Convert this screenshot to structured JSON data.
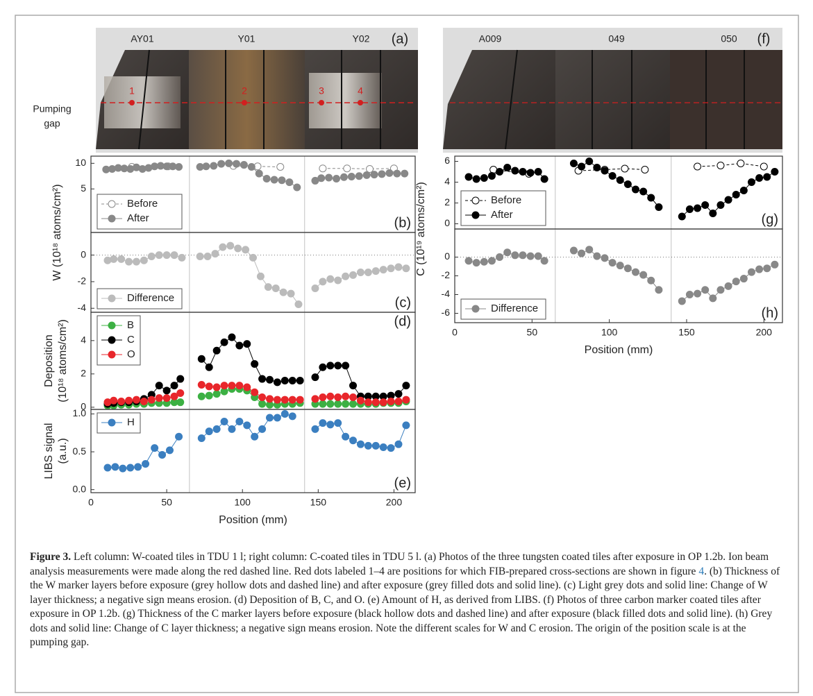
{
  "photos": {
    "left": {
      "tiles": [
        "AY01",
        "Y01",
        "Y02"
      ],
      "panel_label": "(a)",
      "side_label": [
        "Pumping",
        "gap"
      ],
      "points": [
        "1",
        "2",
        "3",
        "4"
      ]
    },
    "right": {
      "tiles": [
        "A009",
        "049",
        "050"
      ],
      "panel_label": "(f)"
    }
  },
  "chart_data": [
    {
      "type": "line",
      "xlim": [
        0,
        214
      ],
      "ylim": [
        -3.5,
        11.4
      ],
      "yticks": [
        5,
        10
      ],
      "ylabel": "W (10¹⁸ atoms/cm²)",
      "ylabel_anchor": "bottom",
      "vlines": [
        65,
        141
      ],
      "panel_label": "(b)",
      "panel_label_position": "lower right",
      "legend": "lower left",
      "series": [
        {
          "name": "Before",
          "color": "#888888",
          "marker": "hollow",
          "line": "dashed",
          "x": [
            27,
            51,
            null,
            94,
            110,
            125,
            null,
            153,
            169,
            184,
            200
          ],
          "values": [
            9.3,
            9.4,
            null,
            9.5,
            9.4,
            9.3,
            null,
            9.0,
            9.0,
            8.9,
            9.0
          ]
        },
        {
          "name": "After",
          "color": "#888888",
          "marker": "filled",
          "line": "solid",
          "x": [
            10,
            14,
            18,
            22,
            26,
            30,
            34,
            38,
            42,
            46,
            50,
            54,
            58,
            null,
            72,
            76,
            81,
            86,
            91,
            96,
            101,
            106,
            111,
            116,
            121,
            126,
            131,
            136,
            null,
            148,
            152,
            157,
            162,
            167,
            172,
            177,
            182,
            187,
            192,
            197,
            202,
            207
          ],
          "values": [
            8.8,
            8.9,
            9.1,
            9.0,
            8.9,
            9.2,
            8.9,
            9.1,
            9.4,
            9.5,
            9.4,
            9.4,
            9.3,
            null,
            9.3,
            9.4,
            9.5,
            9.9,
            10.0,
            9.9,
            9.7,
            9.3,
            8.0,
            7.0,
            6.8,
            6.7,
            6.3,
            5.3,
            null,
            6.6,
            7.1,
            7.2,
            7.0,
            7.3,
            7.4,
            7.5,
            7.7,
            7.8,
            7.9,
            8.1,
            8.0,
            8.0
          ]
        }
      ]
    },
    {
      "type": "line",
      "xlim": [
        0,
        214
      ],
      "ylim": [
        -4.3,
        1.7
      ],
      "yticks": [
        0,
        -2,
        -4
      ],
      "hline": 0,
      "vlines": [
        65,
        141
      ],
      "panel_label": "(c)",
      "panel_label_position": "lower right",
      "legend": "lower left",
      "x": [
        11,
        15,
        20,
        25,
        30,
        35,
        40,
        45,
        50,
        55,
        60,
        null,
        72,
        77,
        82,
        87,
        92,
        97,
        102,
        107,
        112,
        117,
        122,
        127,
        132,
        137,
        null,
        148,
        153,
        158,
        163,
        168,
        173,
        178,
        183,
        188,
        193,
        198,
        203,
        208
      ],
      "series": [
        {
          "name": "Difference",
          "color": "#bbbbbb",
          "marker": "filled",
          "line": "solid",
          "values": [
            -0.4,
            -0.3,
            -0.3,
            -0.5,
            -0.5,
            -0.4,
            -0.1,
            0,
            0,
            0,
            -0.2,
            null,
            -0.1,
            -0.1,
            0.1,
            0.6,
            0.7,
            0.5,
            0.4,
            -0.2,
            -1.6,
            -2.4,
            -2.5,
            -2.8,
            -2.9,
            -3.7,
            null,
            -2.5,
            -2.0,
            -1.8,
            -1.9,
            -1.6,
            -1.5,
            -1.3,
            -1.3,
            -1.2,
            -1.1,
            -1.0,
            -0.9,
            -1.0
          ]
        }
      ]
    },
    {
      "type": "line",
      "xlim": [
        0,
        214
      ],
      "ylim": [
        -0.13,
        5.7
      ],
      "yticks": [
        0,
        2,
        4
      ],
      "ylabel": [
        "Deposition",
        "(10¹⁸ atoms/cm²)"
      ],
      "vlines": [
        65,
        141
      ],
      "panel_label": "(d)",
      "panel_label_position": "upper right",
      "legend": "upper left",
      "x": [
        11,
        15,
        20,
        25,
        30,
        35,
        40,
        45,
        50,
        55,
        59,
        null,
        73,
        78,
        83,
        88,
        93,
        98,
        103,
        108,
        113,
        118,
        123,
        128,
        133,
        138,
        null,
        148,
        153,
        158,
        163,
        168,
        173,
        178,
        183,
        188,
        193,
        198,
        203,
        208
      ],
      "series": [
        {
          "name": "B",
          "color": "#3cb043",
          "marker": "filled",
          "line": "solid",
          "values": [
            0.1,
            0.1,
            0.15,
            0.15,
            0.2,
            0.2,
            0.25,
            0.25,
            0.25,
            0.3,
            0.3,
            null,
            0.65,
            0.7,
            0.8,
            0.95,
            1.1,
            1.1,
            1.0,
            0.6,
            0.2,
            0.15,
            0.15,
            0.2,
            0.2,
            0.25,
            null,
            0.2,
            0.2,
            0.2,
            0.2,
            0.2,
            0.2,
            0.2,
            0.2,
            0.2,
            0.25,
            0.25,
            0.25,
            0.35
          ]
        },
        {
          "name": "C",
          "color": "#000000",
          "marker": "filled",
          "line": "solid",
          "values": [
            0.2,
            0.25,
            0.3,
            0.3,
            0.35,
            0.5,
            0.75,
            1.3,
            1.0,
            1.3,
            1.7,
            null,
            2.9,
            2.4,
            3.4,
            3.9,
            4.2,
            3.7,
            3.8,
            2.6,
            1.7,
            1.65,
            1.5,
            1.6,
            1.6,
            1.6,
            null,
            1.8,
            2.4,
            2.5,
            2.5,
            2.5,
            1.3,
            0.65,
            0.65,
            0.65,
            0.65,
            0.7,
            0.8,
            1.3
          ]
        },
        {
          "name": "O",
          "color": "#e8262b",
          "marker": "filled",
          "line": "solid",
          "values": [
            0.3,
            0.4,
            0.35,
            0.4,
            0.45,
            0.35,
            0.45,
            0.55,
            0.55,
            0.65,
            0.85,
            null,
            1.35,
            1.25,
            1.2,
            1.3,
            1.3,
            1.3,
            1.2,
            0.9,
            0.6,
            0.5,
            0.45,
            0.45,
            0.45,
            0.45,
            null,
            0.5,
            0.6,
            0.65,
            0.6,
            0.65,
            0.6,
            0.4,
            0.3,
            0.3,
            0.3,
            0.35,
            0.35,
            0.45
          ]
        }
      ]
    },
    {
      "type": "line",
      "xlim": [
        0,
        214
      ],
      "ylim": [
        -0.04,
        1.06
      ],
      "yticks": [
        {
          "value": 0,
          "label": "0.0"
        },
        0.5,
        {
          "value": 1,
          "label": "1.0"
        }
      ],
      "xticks": [
        0,
        50,
        100,
        150,
        200
      ],
      "xlabel": "Position (mm)",
      "ylabel": [
        "LIBS signal",
        "(a.u.)"
      ],
      "vlines": [
        65,
        141
      ],
      "panel_label": "(e)",
      "panel_label_position": "lower right",
      "legend": "upper left",
      "x": [
        11,
        16,
        21,
        26,
        31,
        36,
        42,
        47,
        52,
        58,
        null,
        73,
        78,
        83,
        88,
        93,
        98,
        103,
        108,
        113,
        118,
        123,
        128,
        133,
        null,
        148,
        153,
        158,
        163,
        168,
        173,
        178,
        183,
        188,
        193,
        198,
        203,
        208
      ],
      "series": [
        {
          "name": "H",
          "color": "#3b7fc0",
          "marker": "filled",
          "line": "solid",
          "values": [
            0.29,
            0.3,
            0.28,
            0.29,
            0.3,
            0.34,
            0.55,
            0.46,
            0.52,
            0.7,
            null,
            0.68,
            0.77,
            0.8,
            0.9,
            0.8,
            0.9,
            0.85,
            0.7,
            0.8,
            0.95,
            0.95,
            1.0,
            0.97,
            null,
            0.8,
            0.88,
            0.86,
            0.88,
            0.7,
            0.65,
            0.6,
            0.58,
            0.58,
            0.56,
            0.55,
            0.6,
            0.85
          ]
        }
      ]
    },
    {
      "type": "line",
      "xlim": [
        0,
        212
      ],
      "ylim": [
        -0.5,
        6.5
      ],
      "yticks": [
        0,
        2,
        4,
        6
      ],
      "ylabel": "C (10¹⁹ atoms/cm²)",
      "ylabel_anchor": "bottom",
      "vlines": [
        65,
        140
      ],
      "panel_label": "(g)",
      "panel_label_position": "lower right",
      "legend": "lower left",
      "series": [
        {
          "name": "Before",
          "color": "#000000",
          "marker": "hollow",
          "line": "dashed",
          "x": [
            25,
            48,
            null,
            80,
            97,
            110,
            123,
            null,
            157,
            172,
            185,
            200
          ],
          "values": [
            5.2,
            4.8,
            null,
            5.1,
            5.2,
            5.3,
            5.2,
            null,
            5.5,
            5.6,
            5.8,
            5.5
          ]
        },
        {
          "name": "After",
          "color": "#000000",
          "marker": "filled",
          "line": "solid",
          "x": [
            9,
            14,
            19,
            24,
            29,
            34,
            39,
            44,
            49,
            54,
            58,
            null,
            77,
            82,
            87,
            92,
            97,
            102,
            107,
            112,
            117,
            122,
            127,
            132,
            null,
            147,
            152,
            157,
            162,
            167,
            172,
            177,
            182,
            187,
            192,
            197,
            202,
            207
          ],
          "values": [
            4.5,
            4.3,
            4.4,
            4.6,
            5.0,
            5.4,
            5.1,
            5.0,
            4.9,
            5.0,
            4.3,
            null,
            5.8,
            5.5,
            6.0,
            5.4,
            5.1,
            4.6,
            4.2,
            3.8,
            3.3,
            3.1,
            2.5,
            1.6,
            null,
            0.7,
            1.4,
            1.5,
            1.8,
            1.0,
            1.8,
            2.3,
            2.8,
            3.2,
            4.0,
            4.4,
            4.5,
            5.0
          ]
        }
      ]
    },
    {
      "type": "line",
      "xlim": [
        0,
        212
      ],
      "ylim": [
        -7,
        3
      ],
      "yticks": [
        0,
        -2,
        -4,
        -6
      ],
      "xticks": [
        0,
        50,
        100,
        150,
        200
      ],
      "xlabel": "Position (mm)",
      "hline": 0,
      "vlines": [
        65,
        140
      ],
      "panel_label": "(h)",
      "panel_label_position": "lower right",
      "legend": "lower left",
      "x": [
        9,
        14,
        19,
        24,
        29,
        34,
        39,
        44,
        49,
        54,
        58,
        null,
        77,
        82,
        87,
        92,
        97,
        102,
        107,
        112,
        117,
        122,
        127,
        132,
        null,
        147,
        152,
        157,
        162,
        167,
        172,
        177,
        182,
        187,
        192,
        197,
        202,
        207
      ],
      "series": [
        {
          "name": "Difference",
          "color": "#888888",
          "marker": "filled",
          "line": "solid",
          "values": [
            -0.4,
            -0.6,
            -0.5,
            -0.4,
            0,
            0.5,
            0.2,
            0.2,
            0.1,
            0.1,
            -0.4,
            null,
            0.7,
            0.4,
            0.8,
            0.1,
            -0.1,
            -0.6,
            -0.9,
            -1.2,
            -1.6,
            -1.9,
            -2.5,
            -3.5,
            null,
            -4.7,
            -4.0,
            -3.9,
            -3.5,
            -4.4,
            -3.5,
            -3.1,
            -2.6,
            -2.3,
            -1.6,
            -1.3,
            -1.2,
            -0.8
          ]
        }
      ]
    }
  ],
  "caption": {
    "label": "Figure 3.",
    "text_before": " Left column: W-coated tiles in TDU 1 l; right column: C-coated tiles in TDU 5 l. (a) Photos of the three tungsten coated tiles after exposure in OP 1.2b. Ion beam analysis measurements were made along the red dashed line. Red dots labeled 1–4 are positions for which FIB-prepared cross-sections are shown in figure ",
    "link": "4",
    "text_after": ". (b) Thickness of the W marker layers before exposure (grey hollow dots and dashed line) and after exposure (grey filled dots and solid line). (c) Light grey dots and solid line: Change of W layer thickness; a negative sign means erosion. (d) Deposition of B, C, and O. (e) Amount of H, as derived from LIBS. (f) Photos of three carbon marker coated tiles after exposure in OP 1.2b. (g) Thickness of the C marker layers before exposure (black hollow dots and dashed line) and after exposure (black filled dots and solid line). (h) Grey dots and solid line: Change of C layer thickness; a negative sign means erosion. Note the different scales for W and C erosion. The origin of the position scale is at the pumping gap."
  }
}
